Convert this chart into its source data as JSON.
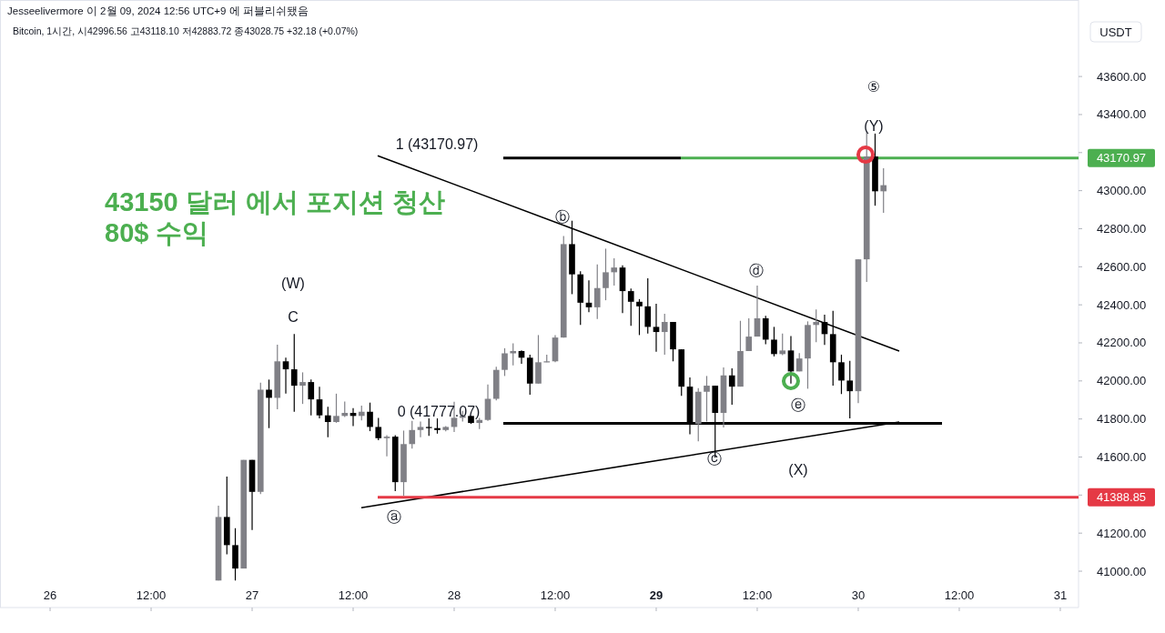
{
  "chart_data": {
    "type": "candlestick",
    "title": "43150 달러 에서 포지션 청산",
    "subtitle": "80$ 수익",
    "ylabel": "USDT",
    "annotations": [
      "Jesseelivermore 이 2월 09, 2024 12:56 UTC+9 에 퍼블리쉬됐음",
      "Bitcoin, 1시간, 시42996.56 고43118.10 저42883.72 종43028.75 +32.18 (+0.07%)",
      "1 (43170.97)",
      "0 (41777.07)",
      "ⓐ",
      "ⓑ",
      "ⓒ",
      "ⓓ",
      "ⓔ",
      "(W)",
      "C",
      "(X)",
      "(Y)",
      "⑤",
      "43170.97",
      "41388.85"
    ],
    "xlim": [
      "2024-01-25T18:03",
      "2024-01-31T02:10"
    ],
    "ylim": [
      40809,
      44002
    ],
    "xticks": [
      {
        "value": "2024-01-26T00:00",
        "label": "26"
      },
      {
        "value": "2024-01-26T12:00",
        "label": "12:00"
      },
      {
        "value": "2024-01-27T00:00",
        "label": "27"
      },
      {
        "value": "2024-01-27T12:00",
        "label": "12:00"
      },
      {
        "value": "2024-01-28T00:00",
        "label": "28"
      },
      {
        "value": "2024-01-28T12:00",
        "label": "12:00"
      },
      {
        "value": "2024-01-29T00:00",
        "label": "**29**"
      },
      {
        "value": "2024-01-29T12:00",
        "label": "12:00"
      },
      {
        "value": "2024-01-30T00:00",
        "label": "30"
      },
      {
        "value": "2024-01-30T12:00",
        "label": "12:00"
      },
      {
        "value": "2024-01-31T00:00",
        "label": "31"
      }
    ],
    "yticks": [
      {
        "value": 41000,
        "label": "41000.00"
      },
      {
        "value": 41200,
        "label": "41200.00"
      },
      {
        "value": 41400,
        "label": null
      },
      {
        "value": 41600,
        "label": "41600.00"
      },
      {
        "value": 41800,
        "label": "41800.00"
      },
      {
        "value": 42000,
        "label": "42000.00"
      },
      {
        "value": 42200,
        "label": "42200.00"
      },
      {
        "value": 42400,
        "label": "42400.00"
      },
      {
        "value": 42600,
        "label": "42600.00"
      },
      {
        "value": 42800,
        "label": "42800.00"
      },
      {
        "value": 43000,
        "label": "43000.00"
      },
      {
        "value": 43200,
        "label": null
      },
      {
        "value": 43400,
        "label": "43400.00"
      },
      {
        "value": 43600,
        "label": "43600.00"
      }
    ],
    "x": [
      "2024-01-26T20:00",
      "2024-01-26T21:00",
      "2024-01-26T22:00",
      "2024-01-26T23:00",
      "2024-01-27T00:00",
      "2024-01-27T01:00",
      "2024-01-27T02:00",
      "2024-01-27T03:00",
      "2024-01-27T04:00",
      "2024-01-27T05:00",
      "2024-01-27T06:00",
      "2024-01-27T07:00",
      "2024-01-27T08:00",
      "2024-01-27T09:00",
      "2024-01-27T10:00",
      "2024-01-27T11:00",
      "2024-01-27T12:00",
      "2024-01-27T13:00",
      "2024-01-27T14:00",
      "2024-01-27T15:00",
      "2024-01-27T16:00",
      "2024-01-27T17:00",
      "2024-01-27T18:00",
      "2024-01-27T19:00",
      "2024-01-27T20:00",
      "2024-01-27T21:00",
      "2024-01-27T22:00",
      "2024-01-27T23:00",
      "2024-01-28T00:00",
      "2024-01-28T01:00",
      "2024-01-28T02:00",
      "2024-01-28T03:00",
      "2024-01-28T04:00",
      "2024-01-28T05:00",
      "2024-01-28T06:00",
      "2024-01-28T07:00",
      "2024-01-28T08:00",
      "2024-01-28T09:00",
      "2024-01-28T10:00",
      "2024-01-28T11:00",
      "2024-01-28T12:00",
      "2024-01-28T13:00",
      "2024-01-28T14:00",
      "2024-01-28T15:00",
      "2024-01-28T16:00",
      "2024-01-28T17:00",
      "2024-01-28T18:00",
      "2024-01-28T19:00",
      "2024-01-28T20:00",
      "2024-01-28T21:00",
      "2024-01-28T22:00",
      "2024-01-28T23:00",
      "2024-01-29T00:00",
      "2024-01-29T01:00",
      "2024-01-29T02:00",
      "2024-01-29T03:00",
      "2024-01-29T04:00",
      "2024-01-29T05:00",
      "2024-01-29T06:00",
      "2024-01-29T07:00",
      "2024-01-29T08:00",
      "2024-01-29T09:00",
      "2024-01-29T10:00",
      "2024-01-29T11:00",
      "2024-01-29T12:00",
      "2024-01-29T13:00",
      "2024-01-29T14:00",
      "2024-01-29T15:00",
      "2024-01-29T16:00",
      "2024-01-29T17:00",
      "2024-01-29T18:00",
      "2024-01-29T19:00",
      "2024-01-29T20:00",
      "2024-01-29T21:00",
      "2024-01-29T22:00",
      "2024-01-29T23:00",
      "2024-01-30T00:00",
      "2024-01-30T01:00",
      "2024-01-30T02:00",
      "2024-01-30T03:00"
    ],
    "ohlc": [
      [
        40951,
        41344,
        40951,
        41285
      ],
      [
        41285,
        41497,
        41089,
        41137
      ],
      [
        41137,
        41226,
        40951,
        41014
      ],
      [
        41014,
        41585,
        41014,
        41585
      ],
      [
        41585,
        41585,
        41217,
        41417
      ],
      [
        41417,
        41991,
        41405,
        41954
      ],
      [
        41954,
        42007,
        41752,
        41911
      ],
      [
        41911,
        42190,
        41851,
        42103
      ],
      [
        42103,
        42122,
        41933,
        42061
      ],
      [
        42061,
        42246,
        41838,
        41975
      ],
      [
        41975,
        42045,
        41879,
        41994
      ],
      [
        41994,
        42007,
        41819,
        41903
      ],
      [
        41903,
        41969,
        41803,
        41819
      ],
      [
        41819,
        41864,
        41704,
        41784
      ],
      [
        41784,
        41933,
        41780,
        41816
      ],
      [
        41816,
        41892,
        41810,
        41832
      ],
      [
        41832,
        41857,
        41763,
        41816
      ],
      [
        41816,
        41870,
        41793,
        41838
      ],
      [
        41838,
        41886,
        41736,
        41758
      ],
      [
        41758,
        41806,
        41688,
        41699
      ],
      [
        41699,
        41715,
        41604,
        41707
      ],
      [
        41707,
        41715,
        41421,
        41468
      ],
      [
        41468,
        41739,
        41397,
        41668
      ],
      [
        41668,
        41790,
        41644,
        41742
      ],
      [
        41742,
        41787,
        41704,
        41758
      ],
      [
        41758,
        41803,
        41711,
        41752
      ],
      [
        41752,
        41803,
        41723,
        41742
      ],
      [
        41742,
        41763,
        41735,
        41758
      ],
      [
        41758,
        41890,
        41731,
        41806
      ],
      [
        41806,
        41843,
        41787,
        41816
      ],
      [
        41816,
        41816,
        41774,
        41779
      ],
      [
        41779,
        41806,
        41747,
        41795
      ],
      [
        41795,
        41981,
        41790,
        41906
      ],
      [
        41906,
        42074,
        41898,
        42058
      ],
      [
        42058,
        42172,
        42026,
        42145
      ],
      [
        42145,
        42198,
        42082,
        42157
      ],
      [
        42157,
        42160,
        42090,
        42122
      ],
      [
        42122,
        42138,
        41927,
        41986
      ],
      [
        41986,
        42241,
        41986,
        42098
      ],
      [
        42098,
        42138,
        42098,
        42103
      ],
      [
        42103,
        42241,
        42098,
        42228
      ],
      [
        42228,
        42762,
        42228,
        42719
      ],
      [
        42719,
        42842,
        42456,
        42560
      ],
      [
        42560,
        42576,
        42294,
        42411
      ],
      [
        42411,
        42528,
        42361,
        42387
      ],
      [
        42387,
        42612,
        42325,
        42488
      ],
      [
        42488,
        42695,
        42424,
        42571
      ],
      [
        42571,
        42644,
        42501,
        42596
      ],
      [
        42596,
        42607,
        42357,
        42472
      ],
      [
        42472,
        42485,
        42289,
        42416
      ],
      [
        42416,
        42430,
        42241,
        42392
      ],
      [
        42392,
        42539,
        42249,
        42284
      ],
      [
        42284,
        42405,
        42153,
        42257
      ],
      [
        42257,
        42353,
        42138,
        42310
      ],
      [
        42310,
        42310,
        42103,
        42166
      ],
      [
        42166,
        42166,
        41922,
        41970
      ],
      [
        41970,
        42018,
        41720,
        41774
      ],
      [
        41774,
        41962,
        41683,
        41943
      ],
      [
        41943,
        42026,
        41787,
        41975
      ],
      [
        41975,
        41975,
        41596,
        41832
      ],
      [
        41832,
        42071,
        41755,
        42029
      ],
      [
        42029,
        42066,
        41875,
        41970
      ],
      [
        41970,
        42316,
        41970,
        42157
      ],
      [
        42157,
        42329,
        42157,
        42233
      ],
      [
        42233,
        42501,
        42233,
        42329
      ],
      [
        42329,
        42342,
        42193,
        42217
      ],
      [
        42217,
        42284,
        42129,
        42141
      ],
      [
        42141,
        42249,
        42135,
        42160
      ],
      [
        42160,
        42236,
        41986,
        42050
      ],
      [
        42050,
        42146,
        42050,
        42118
      ],
      [
        42118,
        42313,
        41959,
        42294
      ],
      [
        42294,
        42376,
        42204,
        42310
      ],
      [
        42310,
        42348,
        42189,
        42246
      ],
      [
        42246,
        42368,
        41975,
        42098
      ],
      [
        42098,
        42138,
        41931,
        42002
      ],
      [
        42002,
        42106,
        41803,
        41946
      ],
      [
        41946,
        42639,
        41883,
        42639
      ],
      [
        42639,
        43313,
        42520,
        43180
      ],
      [
        43180,
        43300,
        42921,
        42996.56
      ],
      [
        42996.56,
        43118.1,
        42883.72,
        43028.75
      ]
    ],
    "series": [
      {
        "type": "line",
        "color": "#000000",
        "x": [
          "2024-01-27T14:55",
          "2024-01-30T04:52"
        ],
        "values": [
          43184,
          42157
        ]
      },
      {
        "type": "line",
        "color": "#000000",
        "x": [
          "2024-01-27T12:58",
          "2024-01-30T04:52"
        ],
        "values": [
          41334,
          41784
        ]
      },
      {
        "type": "line",
        "color": "#000000",
        "x": [
          "2024-01-28T05:50",
          "2024-01-29T02:55"
        ],
        "values": [
          43170.97,
          43170.97
        ]
      },
      {
        "type": "line",
        "color": "#4caf50",
        "x": [
          "2024-01-29T02:55",
          "2024-01-31T02:10"
        ],
        "values": [
          43170.97,
          43170.97
        ]
      },
      {
        "type": "line",
        "color": "#000000",
        "x": [
          "2024-01-28T05:50",
          "2024-01-30T09:57"
        ],
        "values": [
          41777.07,
          41777.07
        ]
      },
      {
        "type": "line",
        "color": "#e53945",
        "x": [
          "2024-01-27T14:55",
          "2024-01-31T02:10"
        ],
        "values": [
          41388.85,
          41388.85
        ]
      },
      {
        "type": "scatter",
        "marker": "circle",
        "color": "#e53945",
        "x": [
          "2024-01-30T00:52"
        ],
        "values": [
          43189
        ]
      },
      {
        "type": "scatter",
        "marker": "circle",
        "color": "#4caf50",
        "x": [
          "2024-01-29T16:00"
        ],
        "values": [
          41999
        ]
      }
    ]
  }
}
